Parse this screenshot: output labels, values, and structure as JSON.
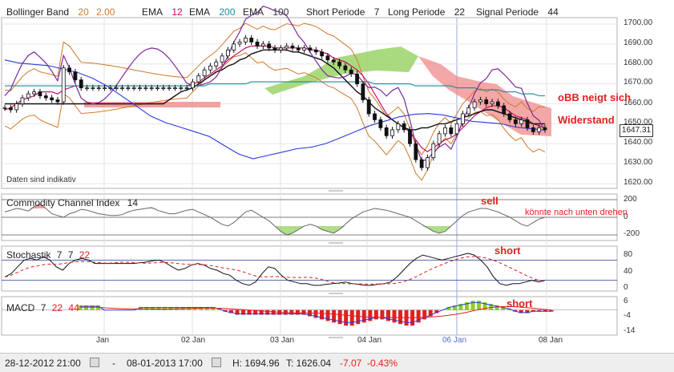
{
  "header": {
    "bb_label": "Bollinger Band",
    "bb_p1": "20",
    "bb_p2": "2.00",
    "ema1_label": "EMA",
    "ema1_val": "12",
    "ema2_label": "EMA",
    "ema2_val": "200",
    "ema3_label": "EMA",
    "ema3_val": "100",
    "short_label": "Short Periode",
    "short_val": "7",
    "long_label": "Long Periode",
    "long_val": "22",
    "signal_label": "Signal Periode",
    "signal_val": "44"
  },
  "colors": {
    "bb": "#d07a2a",
    "ema12": "#c00060",
    "ema200": "#1a8a9a",
    "ema100": "#555555",
    "cloud_green": "#9bd46a",
    "cloud_red": "#f08a8a",
    "purple": "#7b2a9a",
    "blue": "#2a3adf",
    "red": "#e02020"
  },
  "price_pane": {
    "y_ticks": [
      "1700.00",
      "1690.00",
      "1680.00",
      "1670.00",
      "1660.00",
      "1650.00",
      "1640.00",
      "1630.00",
      "1620.00"
    ],
    "current_price": "1647.31",
    "disclaimer": "Daten sind indikativ",
    "note1": "oBB neigt sich",
    "note2": "Widerstand"
  },
  "cci_pane": {
    "title": "Commodity Channel Index",
    "period": "14",
    "y_ticks": [
      "200",
      "0",
      "-200"
    ],
    "note_sell": "sell",
    "note_small": "könnte nach unten drehen"
  },
  "stoch_pane": {
    "title": "Stochastik",
    "p1": "7",
    "p2": "7",
    "p3": "22",
    "y_ticks": [
      "80",
      "40",
      "0"
    ],
    "note": "short"
  },
  "macd_pane": {
    "title": "MACD",
    "p1": "7",
    "p2": "22",
    "p3": "44",
    "y_ticks": [
      "6",
      "-4",
      "-14"
    ],
    "note": "short"
  },
  "x_axis": {
    "ticks": [
      "Jan",
      "02 Jan",
      "03 Jan",
      "04 Jan",
      "06 Jan",
      "08 Jan"
    ]
  },
  "statusbar": {
    "from": "28-12-2012 21:00",
    "dash": "-",
    "to": "08-01-2013 17:00",
    "high": "H: 1694.96",
    "low": "T: 1626.04",
    "change": "-7.07",
    "change_pct": "-0.43%"
  },
  "chart_data": {
    "type": "line",
    "instrument_values_range": [
      1620,
      1700
    ],
    "x_ticks": [
      "Jan",
      "02 Jan",
      "03 Jan",
      "04 Jan",
      "06 Jan",
      "08 Jan"
    ],
    "y_ticks": [
      1620,
      1630,
      1640,
      1650,
      1660,
      1670,
      1680,
      1690,
      1700
    ],
    "last": 1647.31,
    "high": 1694.96,
    "low": 1626.04,
    "close": [
      1658,
      1657,
      1660,
      1663,
      1665,
      1666,
      1664,
      1663,
      1662,
      1661,
      1678,
      1676,
      1672,
      1668,
      1668,
      1668,
      1668,
      1668,
      1668,
      1668,
      1668,
      1668,
      1668,
      1668,
      1668,
      1668,
      1668,
      1668,
      1668,
      1668,
      1668,
      1668,
      1671,
      1674,
      1677,
      1679,
      1681,
      1684,
      1687,
      1690,
      1691,
      1693,
      1691,
      1689,
      1690,
      1688,
      1687,
      1688,
      1689,
      1688,
      1687,
      1688,
      1687,
      1686,
      1684,
      1682,
      1681,
      1679,
      1677,
      1675,
      1670,
      1662,
      1655,
      1652,
      1648,
      1644,
      1647,
      1650,
      1647,
      1640,
      1632,
      1628,
      1633,
      1640,
      1645,
      1648,
      1645,
      1650,
      1655,
      1658,
      1661,
      1662,
      1660,
      1661,
      1659,
      1655,
      1652,
      1650,
      1652,
      1648,
      1646,
      1648,
      1647
    ],
    "series": [
      {
        "name": "EMA 12",
        "values": [
          1657,
          1658,
          1660,
          1662,
          1663,
          1664,
          1666,
          1666,
          1666,
          1665,
          1667,
          1668,
          1669,
          1669,
          1669,
          1669,
          1669,
          1669,
          1669,
          1669,
          1669,
          1669,
          1669,
          1669,
          1669,
          1669,
          1669,
          1669,
          1669,
          1669,
          1669,
          1669,
          1670,
          1671,
          1673,
          1675,
          1677,
          1679,
          1682,
          1684,
          1686,
          1688,
          1689,
          1689,
          1689,
          1689,
          1688,
          1688,
          1688,
          1688,
          1688,
          1688,
          1687,
          1687,
          1686,
          1685,
          1683,
          1682,
          1681,
          1679,
          1677,
          1674,
          1670,
          1665,
          1660,
          1655,
          1652,
          1650,
          1648,
          1646,
          1642,
          1638,
          1636,
          1638,
          1640,
          1642,
          1643,
          1645,
          1648,
          1651,
          1654,
          1656,
          1658,
          1659,
          1659,
          1658,
          1656,
          1654,
          1653,
          1652,
          1650,
          1649,
          1648
        ]
      },
      {
        "name": "EMA 200",
        "values": [
          1669,
          1669,
          1669,
          1669,
          1669,
          1669,
          1669,
          1669,
          1669,
          1669,
          1669,
          1669,
          1669,
          1669,
          1669,
          1669,
          1669,
          1669,
          1669,
          1669,
          1669,
          1669,
          1669,
          1669,
          1669,
          1669,
          1669,
          1669,
          1669,
          1669,
          1669,
          1669,
          1669,
          1669,
          1669,
          1670,
          1670,
          1670,
          1670,
          1670,
          1670,
          1670,
          1671,
          1671,
          1671,
          1671,
          1671,
          1671,
          1671,
          1671,
          1671,
          1671,
          1671,
          1671,
          1671,
          1671,
          1671,
          1671,
          1671,
          1671,
          1671,
          1671,
          1671,
          1670,
          1670,
          1670,
          1670,
          1670,
          1670,
          1670,
          1669,
          1669,
          1669,
          1669,
          1669,
          1669,
          1669,
          1668,
          1668,
          1668,
          1668,
          1667,
          1667,
          1667,
          1667,
          1666,
          1666,
          1666,
          1665,
          1665,
          1665,
          1664,
          1664
        ]
      },
      {
        "name": "EMA 100",
        "values": [
          1660,
          1660,
          1660,
          1660,
          1660,
          1660,
          1660,
          1660,
          1660,
          1660,
          1660,
          1660,
          1660,
          1660,
          1660,
          1660,
          1660,
          1660,
          1660,
          1660,
          1660,
          1660,
          1660,
          1660,
          1660,
          1660,
          1660,
          1660,
          1662,
          1664,
          1666,
          1667,
          1668,
          1670,
          1672,
          1674,
          1676,
          1677,
          1679,
          1680,
          1682,
          1683,
          1685,
          1686,
          1687,
          1687,
          1687,
          1687,
          1687,
          1686,
          1686,
          1685,
          1684,
          1683,
          1682,
          1680,
          1678,
          1675,
          1672,
          1669,
          1666,
          1664,
          1661,
          1658,
          1656,
          1654,
          1652,
          1650,
          1648,
          1647,
          1647,
          1648,
          1648,
          1649,
          1650,
          1650,
          1651,
          1652,
          1653,
          1654,
          1655,
          1656,
          1657,
          1657,
          1656,
          1655,
          1654,
          1653,
          1652,
          1651,
          1650,
          1650,
          1650
        ]
      }
    ],
    "cci": [
      60,
      80,
      100,
      90,
      70,
      120,
      150,
      100,
      40,
      20,
      0,
      40,
      60,
      90,
      80,
      60,
      40,
      30,
      20,
      20,
      30,
      60,
      80,
      90,
      100,
      110,
      80,
      60,
      40,
      40,
      60,
      80,
      90,
      60,
      30,
      0,
      -40,
      -80,
      -100,
      -60,
      0,
      60,
      80,
      40,
      0,
      -40,
      -100,
      -160,
      -200,
      -180,
      -140,
      -100,
      -80,
      -100,
      -140,
      -160,
      -180,
      -140,
      -80,
      -20,
      20,
      60,
      80,
      100,
      90,
      80,
      60,
      40,
      20,
      0,
      -40,
      -80,
      -120,
      -160,
      -180,
      -160,
      -100,
      -40,
      20,
      60,
      80,
      100,
      100,
      80,
      60,
      30,
      0,
      -40,
      -80,
      -100,
      -60,
      -20,
      0
    ],
    "stoch": [
      30,
      40,
      60,
      80,
      85,
      80,
      90,
      80,
      60,
      50,
      70,
      80,
      85,
      80,
      70,
      70,
      70,
      70,
      70,
      70,
      70,
      72,
      74,
      78,
      80,
      72,
      60,
      50,
      55,
      65,
      70,
      65,
      55,
      50,
      40,
      35,
      20,
      10,
      5,
      15,
      40,
      60,
      55,
      35,
      20,
      15,
      10,
      10,
      5,
      5,
      8,
      10,
      12,
      15,
      10,
      8,
      5,
      5,
      8,
      10,
      15,
      30,
      50,
      70,
      85,
      95,
      90,
      85,
      80,
      85,
      90,
      95,
      100,
      95,
      80,
      60,
      30,
      10,
      5,
      10,
      10,
      15,
      20,
      15,
      20
    ],
    "macd_hist": [
      3,
      3,
      3,
      3,
      0,
      0,
      0,
      0,
      0,
      0,
      2,
      2,
      2,
      2,
      2,
      2,
      2,
      2,
      2,
      2,
      2,
      2,
      2,
      1,
      -1,
      -2,
      -3,
      -3,
      -3,
      -3,
      -3,
      -3,
      -3,
      -3,
      -3,
      -3,
      -3,
      -3,
      -4,
      -5,
      -6,
      -7,
      -8,
      -9,
      -10,
      -10,
      -9,
      -8,
      -7,
      -6,
      -6,
      -7,
      -8,
      -9,
      -10,
      -10,
      -8,
      -6,
      -4,
      -2,
      0,
      2,
      3,
      4,
      5,
      6,
      6,
      5,
      4,
      3,
      2,
      1,
      -1,
      -2,
      -2,
      -1,
      -1,
      -1,
      -1
    ]
  }
}
